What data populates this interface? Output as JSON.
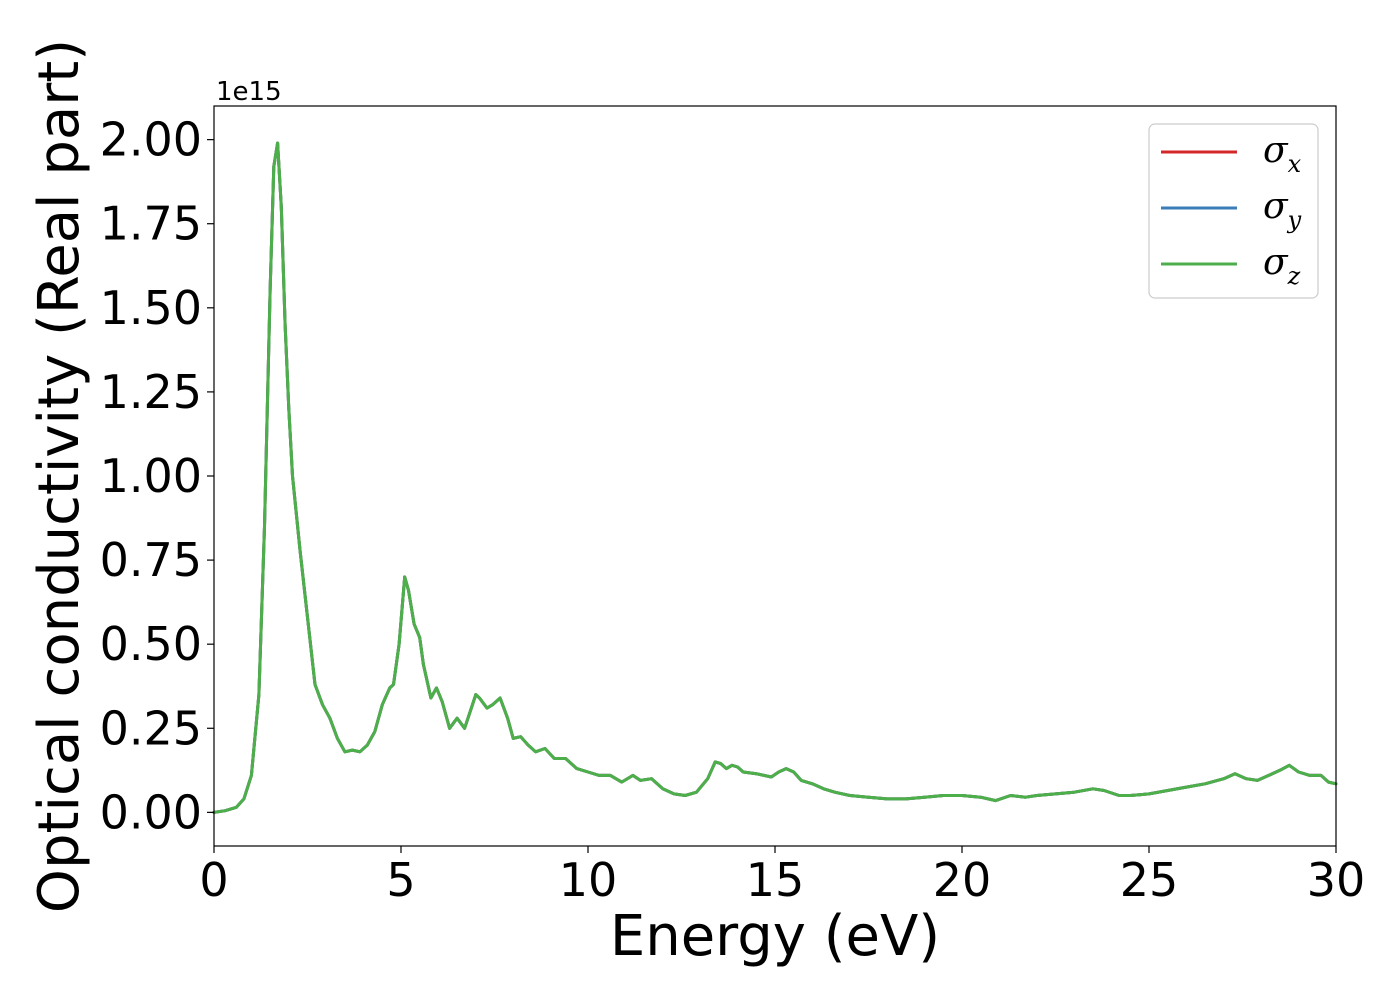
{
  "chart_data": {
    "type": "line",
    "xlabel": "Energy (eV)",
    "ylabel": "Optical conductivity (Real part)",
    "y_offset_text": "1e15",
    "y_multiplier": 1000000000000000.0,
    "xlim": [
      0,
      30
    ],
    "ylim": [
      -0.1,
      2.1
    ],
    "x_ticks": [
      0,
      5,
      10,
      15,
      20,
      25,
      30
    ],
    "x_tick_labels": [
      "0",
      "5",
      "10",
      "15",
      "20",
      "25",
      "30"
    ],
    "y_ticks": [
      0.0,
      0.25,
      0.5,
      0.75,
      1.0,
      1.25,
      1.5,
      1.75,
      2.0
    ],
    "y_tick_labels": [
      "0.00",
      "0.25",
      "0.50",
      "0.75",
      "1.00",
      "1.25",
      "1.50",
      "1.75",
      "2.00"
    ],
    "grid": false,
    "legend_position": "top-right",
    "series": [
      {
        "name": "σx",
        "symbol": "σ",
        "subscript": "x",
        "color": "#d62728"
      },
      {
        "name": "σy",
        "symbol": "σ",
        "subscript": "y",
        "color": "#3b7db8"
      },
      {
        "name": "σz",
        "symbol": "σ",
        "subscript": "z",
        "color": "#4daf4a"
      }
    ],
    "x": [
      0,
      0.3,
      0.6,
      0.8,
      1.0,
      1.2,
      1.35,
      1.5,
      1.6,
      1.7,
      1.8,
      1.9,
      2.0,
      2.1,
      2.3,
      2.5,
      2.7,
      2.9,
      3.1,
      3.3,
      3.5,
      3.7,
      3.9,
      4.1,
      4.3,
      4.5,
      4.7,
      4.8,
      4.95,
      5.1,
      5.2,
      5.35,
      5.5,
      5.6,
      5.8,
      5.95,
      6.1,
      6.3,
      6.5,
      6.7,
      6.85,
      7.0,
      7.1,
      7.3,
      7.45,
      7.65,
      7.85,
      8.0,
      8.2,
      8.4,
      8.6,
      8.85,
      9.1,
      9.4,
      9.7,
      10.0,
      10.3,
      10.6,
      10.9,
      11.2,
      11.4,
      11.7,
      12.0,
      12.3,
      12.6,
      12.9,
      13.2,
      13.4,
      13.55,
      13.7,
      13.85,
      14.0,
      14.15,
      14.5,
      14.9,
      15.1,
      15.3,
      15.5,
      15.7,
      16.0,
      16.3,
      16.6,
      17.0,
      17.5,
      18.0,
      18.5,
      19.0,
      19.5,
      20.0,
      20.5,
      20.9,
      21.3,
      21.7,
      22.0,
      22.5,
      23.0,
      23.5,
      23.8,
      24.2,
      24.5,
      25.0,
      25.5,
      26.0,
      26.5,
      27.0,
      27.3,
      27.6,
      27.9,
      28.2,
      28.5,
      28.75,
      29.0,
      29.3,
      29.6,
      29.8,
      30.0
    ],
    "values": [
      0.0,
      0.005,
      0.015,
      0.04,
      0.11,
      0.35,
      0.85,
      1.55,
      1.92,
      1.99,
      1.8,
      1.45,
      1.2,
      1.0,
      0.78,
      0.58,
      0.38,
      0.32,
      0.28,
      0.22,
      0.18,
      0.185,
      0.18,
      0.2,
      0.24,
      0.32,
      0.37,
      0.38,
      0.5,
      0.7,
      0.66,
      0.56,
      0.52,
      0.44,
      0.34,
      0.37,
      0.33,
      0.25,
      0.28,
      0.25,
      0.3,
      0.35,
      0.34,
      0.31,
      0.32,
      0.34,
      0.28,
      0.22,
      0.225,
      0.2,
      0.18,
      0.19,
      0.16,
      0.16,
      0.13,
      0.12,
      0.11,
      0.11,
      0.09,
      0.11,
      0.095,
      0.1,
      0.07,
      0.055,
      0.05,
      0.06,
      0.1,
      0.15,
      0.145,
      0.13,
      0.14,
      0.135,
      0.12,
      0.115,
      0.105,
      0.12,
      0.13,
      0.12,
      0.095,
      0.085,
      0.07,
      0.06,
      0.05,
      0.045,
      0.04,
      0.04,
      0.045,
      0.05,
      0.05,
      0.045,
      0.035,
      0.05,
      0.045,
      0.05,
      0.055,
      0.06,
      0.07,
      0.065,
      0.05,
      0.05,
      0.055,
      0.065,
      0.075,
      0.085,
      0.1,
      0.115,
      0.1,
      0.095,
      0.11,
      0.125,
      0.14,
      0.12,
      0.11,
      0.11,
      0.09,
      0.085
    ]
  }
}
